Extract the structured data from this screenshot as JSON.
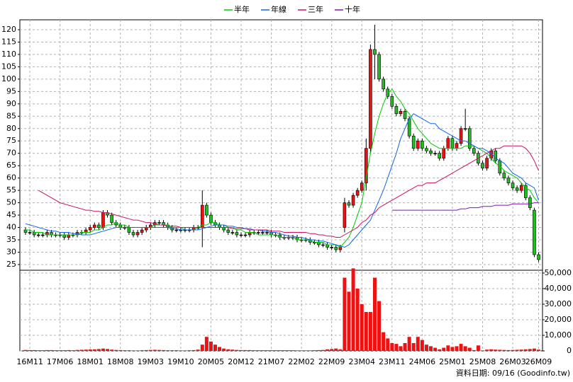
{
  "chart_data": {
    "type": "candlestick",
    "categories": [
      null,
      "16M11",
      null,
      null,
      null,
      null,
      null,
      null,
      "17M06",
      null,
      null,
      null,
      null,
      null,
      null,
      "18M01",
      null,
      null,
      null,
      null,
      null,
      null,
      "18M08",
      null,
      null,
      null,
      null,
      null,
      null,
      "19M03",
      null,
      null,
      null,
      null,
      null,
      null,
      "19M10",
      null,
      null,
      null,
      null,
      null,
      null,
      "20M05",
      null,
      null,
      null,
      null,
      null,
      null,
      "20M12",
      null,
      null,
      null,
      null,
      null,
      null,
      "21M07",
      null,
      null,
      null,
      null,
      null,
      null,
      "22M02",
      null,
      null,
      null,
      null,
      null,
      null,
      "22M09",
      null,
      null,
      null,
      null,
      null,
      null,
      "23M04",
      null,
      null,
      null,
      null,
      null,
      null,
      "23M11",
      null,
      null,
      null,
      null,
      null,
      null,
      "24M06",
      null,
      null,
      null,
      null,
      null,
      null,
      "25M01",
      null,
      null,
      null,
      null,
      null,
      null,
      "25M08",
      null,
      null,
      null,
      null,
      null,
      null,
      "26M03",
      null,
      null,
      null,
      null,
      null,
      "26M09"
    ],
    "open": [
      39,
      38,
      38,
      37,
      37,
      37,
      38,
      37,
      37,
      37,
      36,
      37,
      37,
      38,
      38,
      39,
      40,
      41,
      40,
      46,
      45,
      42,
      41,
      40,
      40,
      38,
      37,
      38,
      39,
      40,
      41,
      42,
      42,
      41,
      40,
      39,
      39,
      39,
      39,
      39,
      40,
      40,
      49,
      45,
      42,
      41,
      40,
      39,
      38,
      38,
      37,
      37,
      37,
      38,
      38,
      38,
      38,
      38,
      37,
      37,
      36,
      36,
      36,
      36,
      35,
      35,
      35,
      34,
      34,
      33,
      33,
      32,
      32,
      31,
      40,
      50,
      49,
      53,
      55,
      58,
      72,
      112,
      110,
      100,
      96,
      93,
      89,
      86,
      87,
      84,
      77,
      72,
      75,
      72,
      71,
      70,
      70,
      68,
      72,
      76,
      72,
      74,
      80,
      80,
      72,
      70,
      66,
      64,
      68,
      71,
      67,
      62,
      60,
      58,
      56,
      55,
      57,
      52,
      47,
      29
    ],
    "high": [
      40,
      39,
      39,
      38,
      38,
      39,
      39,
      38,
      38,
      38,
      38,
      38,
      39,
      39,
      40,
      41,
      42,
      42,
      47,
      47,
      46,
      43,
      42,
      41,
      41,
      39,
      39,
      40,
      41,
      42,
      43,
      43,
      43,
      42,
      41,
      40,
      40,
      40,
      40,
      41,
      41,
      55,
      50,
      46,
      43,
      42,
      41,
      40,
      39,
      39,
      38,
      38,
      39,
      39,
      39,
      39,
      39,
      39,
      38,
      38,
      37,
      37,
      37,
      37,
      36,
      36,
      36,
      35,
      35,
      34,
      34,
      33,
      33,
      33,
      52,
      51,
      54,
      56,
      59,
      76,
      114,
      122,
      111,
      101,
      97,
      94,
      90,
      88,
      88,
      85,
      78,
      76,
      76,
      73,
      72,
      71,
      71,
      73,
      77,
      77,
      75,
      81,
      88,
      81,
      73,
      71,
      67,
      69,
      72,
      72,
      68,
      63,
      61,
      59,
      57,
      58,
      58,
      53,
      48,
      30
    ],
    "low": [
      37,
      37,
      36,
      36,
      36,
      36,
      36,
      36,
      36,
      35,
      35,
      36,
      36,
      37,
      37,
      38,
      39,
      39,
      39,
      44,
      41,
      40,
      39,
      39,
      37,
      36,
      36,
      37,
      38,
      39,
      40,
      41,
      40,
      39,
      38,
      38,
      38,
      38,
      38,
      38,
      39,
      32,
      44,
      41,
      40,
      39,
      38,
      37,
      37,
      36,
      36,
      36,
      36,
      37,
      37,
      37,
      37,
      36,
      36,
      35,
      35,
      35,
      35,
      34,
      34,
      34,
      33,
      33,
      32,
      32,
      31,
      31,
      30,
      30,
      38,
      48,
      48,
      52,
      54,
      55,
      70,
      100,
      99,
      95,
      92,
      88,
      85,
      85,
      83,
      76,
      71,
      71,
      71,
      70,
      69,
      69,
      67,
      67,
      71,
      71,
      71,
      73,
      79,
      71,
      69,
      65,
      63,
      63,
      67,
      66,
      61,
      59,
      57,
      55,
      54,
      54,
      51,
      47,
      28,
      26
    ],
    "close": [
      38,
      38,
      37,
      37,
      37,
      38,
      37,
      37,
      37,
      36,
      37,
      37,
      38,
      38,
      39,
      40,
      41,
      40,
      46,
      45,
      42,
      41,
      40,
      40,
      38,
      37,
      38,
      39,
      40,
      41,
      42,
      42,
      41,
      40,
      39,
      39,
      39,
      39,
      39,
      40,
      40,
      49,
      45,
      42,
      41,
      40,
      39,
      38,
      38,
      37,
      37,
      37,
      38,
      38,
      38,
      38,
      38,
      37,
      37,
      36,
      36,
      36,
      36,
      35,
      35,
      35,
      34,
      34,
      33,
      33,
      32,
      32,
      31,
      32,
      50,
      49,
      53,
      55,
      58,
      72,
      112,
      110,
      100,
      96,
      93,
      89,
      86,
      87,
      84,
      77,
      72,
      75,
      72,
      71,
      70,
      70,
      68,
      72,
      76,
      72,
      74,
      80,
      80,
      72,
      70,
      66,
      64,
      68,
      71,
      67,
      62,
      60,
      58,
      56,
      55,
      57,
      52,
      48,
      29,
      27
    ],
    "up_color": "#ee1111",
    "down_color": "#22bb22",
    "ylim": [
      22.7,
      124
    ],
    "yticks": [
      25,
      30,
      35,
      40,
      45,
      50,
      55,
      60,
      65,
      70,
      75,
      80,
      85,
      90,
      95,
      100,
      105,
      110,
      115,
      120
    ],
    "grid": true,
    "legend": "top",
    "series": [
      {
        "name": "半年",
        "color": "#00cc00",
        "values": [
          39,
          39,
          38,
          38,
          38,
          37,
          37,
          37,
          37,
          37,
          37,
          37,
          37,
          38,
          38,
          38,
          39,
          39,
          40,
          41,
          41,
          42,
          41,
          41,
          40,
          40,
          40,
          40,
          40,
          40,
          41,
          41,
          41,
          41,
          40,
          40,
          40,
          39,
          39,
          39,
          40,
          41,
          41,
          42,
          42,
          41,
          41,
          40,
          40,
          39,
          39,
          38,
          38,
          38,
          37,
          37,
          37,
          37,
          37,
          36,
          36,
          36,
          36,
          35,
          35,
          35,
          35,
          34,
          34,
          34,
          33,
          33,
          33,
          32,
          34,
          36,
          40,
          45,
          50,
          60,
          70,
          78,
          85,
          90,
          94,
          96,
          93,
          91,
          88,
          86,
          83,
          80,
          78,
          76,
          74,
          73,
          72,
          72,
          72,
          72,
          72,
          72,
          73,
          73,
          73,
          72,
          71,
          70,
          68,
          66,
          65,
          63,
          62,
          61,
          60,
          58,
          56,
          55,
          52,
          50
        ]
      },
      {
        "name": "年線",
        "color": "#1166ee",
        "values": [
          41.5,
          41,
          40.5,
          40,
          39.5,
          39,
          38.5,
          38.5,
          38,
          38,
          38,
          37.5,
          37.5,
          37,
          37,
          37,
          37.5,
          38,
          38.5,
          39,
          39.5,
          40,
          40,
          40,
          40,
          40,
          40,
          40,
          40,
          40,
          40,
          40,
          40,
          40,
          39.5,
          39.5,
          39,
          39,
          39,
          39,
          39,
          39.5,
          40,
          40.5,
          41,
          41,
          41,
          40.5,
          40.5,
          40,
          40,
          39.5,
          39.5,
          39,
          39,
          38.5,
          38.5,
          38,
          38,
          37.5,
          37,
          36.5,
          36.5,
          36,
          36,
          35.5,
          35,
          35,
          34.5,
          34.5,
          34,
          33.5,
          33,
          32.5,
          32,
          33,
          35,
          37,
          39,
          41,
          43,
          47,
          51,
          55,
          60,
          65,
          70,
          76,
          80,
          84,
          86,
          85,
          84,
          83,
          82,
          82,
          80,
          79,
          78,
          77,
          76,
          75,
          75,
          74,
          73,
          72,
          72,
          71,
          70,
          68,
          67,
          66,
          64,
          62,
          61,
          60,
          58,
          57,
          56,
          51
        ]
      },
      {
        "name": "三年",
        "color": "#cc1166",
        "values": [
          null,
          null,
          null,
          55,
          54,
          53,
          52,
          51,
          50,
          49.5,
          49,
          48.5,
          48,
          47.5,
          47,
          47,
          46.5,
          46.5,
          46,
          46,
          45.5,
          45,
          44.5,
          44,
          43.5,
          43,
          43,
          42.5,
          42,
          42,
          41.5,
          41,
          41,
          40.5,
          40.5,
          40.5,
          40,
          40,
          40,
          40,
          40,
          40,
          40,
          40,
          40,
          40,
          40,
          40,
          39.5,
          39.5,
          39.5,
          39.5,
          39,
          39,
          39,
          39,
          39,
          38.5,
          38.5,
          38.5,
          38,
          38,
          38,
          38,
          38,
          38,
          37.5,
          37.5,
          37,
          37,
          36.5,
          36.5,
          36,
          36,
          37,
          38,
          39,
          40,
          42,
          43,
          45,
          46,
          48,
          49,
          50,
          51,
          52,
          53,
          54,
          55,
          56,
          57,
          57,
          58,
          58,
          58,
          59,
          60,
          61,
          62,
          63,
          64,
          65,
          66,
          67,
          68,
          69,
          70,
          71,
          72,
          72,
          73,
          73,
          73,
          73,
          73,
          72,
          70,
          67,
          63
        ]
      },
      {
        "name": "十年",
        "color": "#8811bb",
        "values": [
          null,
          null,
          null,
          null,
          null,
          null,
          null,
          null,
          null,
          null,
          null,
          null,
          null,
          null,
          null,
          null,
          null,
          null,
          null,
          null,
          null,
          null,
          null,
          null,
          null,
          null,
          null,
          null,
          null,
          null,
          null,
          null,
          null,
          null,
          null,
          null,
          null,
          null,
          null,
          null,
          null,
          null,
          null,
          null,
          null,
          null,
          null,
          null,
          null,
          null,
          null,
          null,
          null,
          null,
          null,
          null,
          null,
          null,
          null,
          null,
          null,
          null,
          null,
          null,
          null,
          null,
          null,
          null,
          null,
          null,
          null,
          null,
          null,
          null,
          null,
          null,
          null,
          null,
          null,
          null,
          null,
          null,
          null,
          null,
          null,
          47,
          47,
          47,
          47,
          47,
          47,
          47,
          47,
          47,
          47,
          47,
          47,
          47,
          47,
          47,
          47,
          47.5,
          47.5,
          48,
          48,
          48,
          48.5,
          48.5,
          48.5,
          49,
          49,
          49,
          49,
          49.5,
          49.5,
          49.5,
          49.5,
          49.5,
          50,
          50
        ]
      }
    ],
    "volume": {
      "type": "bar",
      "color": "#ee1111",
      "values": [
        600,
        500,
        500,
        400,
        400,
        500,
        500,
        400,
        400,
        400,
        500,
        400,
        600,
        700,
        800,
        900,
        1000,
        1200,
        1500,
        1200,
        800,
        600,
        500,
        400,
        400,
        300,
        300,
        400,
        500,
        600,
        700,
        600,
        500,
        400,
        400,
        400,
        300,
        300,
        400,
        500,
        800,
        4000,
        9000,
        6000,
        4000,
        2500,
        1500,
        1000,
        800,
        600,
        500,
        500,
        500,
        400,
        400,
        400,
        400,
        400,
        400,
        400,
        400,
        400,
        400,
        300,
        300,
        300,
        300,
        400,
        500,
        600,
        1000,
        1200,
        1500,
        1000,
        47000,
        38000,
        53000,
        40000,
        30000,
        25000,
        25000,
        47000,
        32000,
        12000,
        8000,
        5000,
        4500,
        3000,
        5000,
        9000,
        5000,
        9000,
        7000,
        4000,
        3000,
        2000,
        1000,
        2000,
        3500,
        2500,
        3000,
        4500,
        3000,
        2000,
        500,
        3500,
        300,
        800,
        1000,
        800,
        700,
        600,
        500,
        600,
        700,
        800,
        1000,
        1200,
        1500,
        800
      ],
      "ylim": [
        0,
        51800
      ],
      "yticks": [
        0,
        {
          "value": 10000,
          "label": "10,000"
        },
        {
          "value": 20000,
          "label": "20,000"
        },
        {
          "value": 30000,
          "label": "30,000"
        },
        {
          "value": 40000,
          "label": "40,000"
        },
        {
          "value": 50000,
          "label": "50,000"
        }
      ]
    },
    "source": "資料日期: 09/16 (Goodinfo.tw)"
  }
}
